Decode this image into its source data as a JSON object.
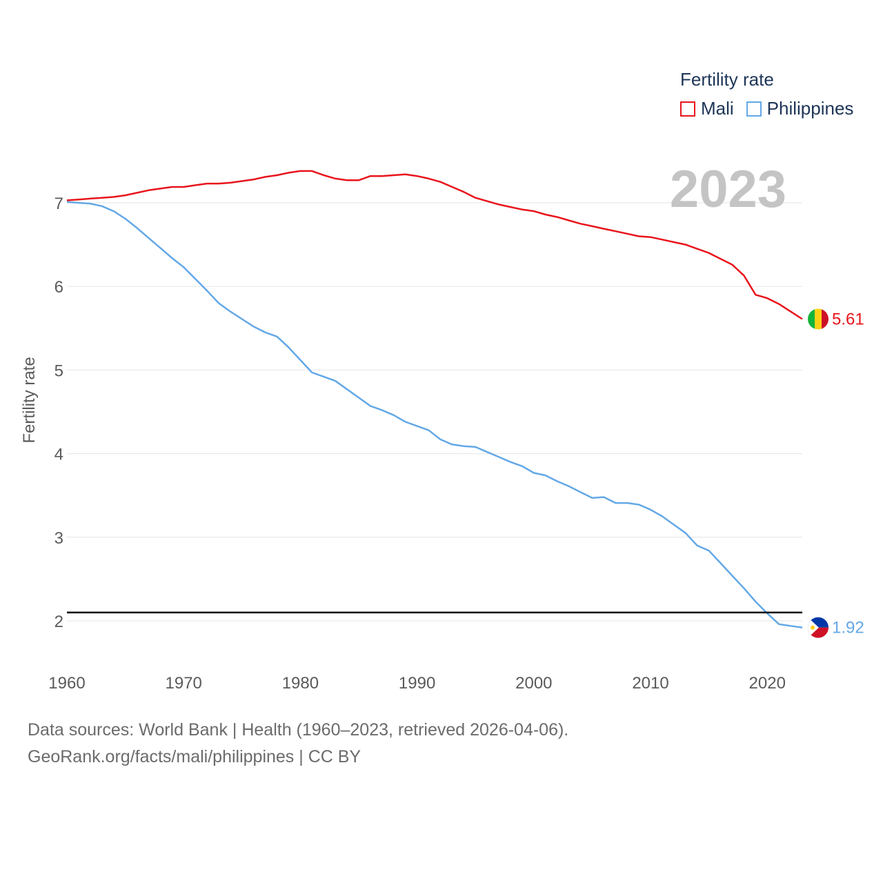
{
  "colors": {
    "mali": "#e8141c",
    "philippines": "#63a8e6",
    "grid": "#e6e6e6",
    "threshold": "#000000"
  },
  "legend": {
    "title": "Fertility rate",
    "items": [
      {
        "label": "Mali",
        "color": "#e8141c"
      },
      {
        "label": "Philippines",
        "color": "#63a8e6"
      }
    ]
  },
  "year_label": "2023",
  "footer": {
    "line1": "Data sources: World Bank | Health (1960–2023, retrieved 2026-04-06).",
    "line2": "GeoRank.org/facts/mali/philippines | CC BY"
  },
  "chart_data": {
    "type": "line",
    "title": "",
    "xlabel": "",
    "ylabel": "Fertility rate",
    "xlim": [
      1960,
      2023
    ],
    "ylim": [
      1.5,
      7.8
    ],
    "x_ticks": [
      "1960",
      "1970",
      "1980",
      "1990",
      "2000",
      "2010",
      "2020"
    ],
    "y_ticks": [
      "2",
      "3",
      "4",
      "5",
      "6",
      "7"
    ],
    "reference_line": {
      "y": 2.1,
      "color": "#000000"
    },
    "x": [
      1960,
      1961,
      1962,
      1963,
      1964,
      1965,
      1966,
      1967,
      1968,
      1969,
      1970,
      1971,
      1972,
      1973,
      1974,
      1975,
      1976,
      1977,
      1978,
      1979,
      1980,
      1981,
      1982,
      1983,
      1984,
      1985,
      1986,
      1987,
      1988,
      1989,
      1990,
      1991,
      1992,
      1993,
      1994,
      1995,
      1996,
      1997,
      1998,
      1999,
      2000,
      2001,
      2002,
      2003,
      2004,
      2005,
      2006,
      2007,
      2008,
      2009,
      2010,
      2011,
      2012,
      2013,
      2014,
      2015,
      2016,
      2017,
      2018,
      2019,
      2020,
      2021,
      2022,
      2023
    ],
    "series": [
      {
        "name": "Mali",
        "color": "#e8141c",
        "end_label": "5.61",
        "values": [
          7.03,
          7.04,
          7.05,
          7.06,
          7.07,
          7.09,
          7.12,
          7.15,
          7.17,
          7.19,
          7.19,
          7.21,
          7.23,
          7.23,
          7.24,
          7.26,
          7.28,
          7.31,
          7.33,
          7.36,
          7.38,
          7.38,
          7.33,
          7.29,
          7.27,
          7.27,
          7.32,
          7.32,
          7.33,
          7.34,
          7.32,
          7.29,
          7.25,
          7.19,
          7.13,
          7.06,
          7.02,
          6.98,
          6.95,
          6.92,
          6.9,
          6.86,
          6.83,
          6.79,
          6.75,
          6.72,
          6.69,
          6.66,
          6.63,
          6.6,
          6.59,
          6.56,
          6.53,
          6.5,
          6.45,
          6.4,
          6.33,
          6.26,
          6.13,
          5.9,
          5.86,
          5.79,
          5.7,
          5.61
        ]
      },
      {
        "name": "Philippines",
        "color": "#63a8e6",
        "end_label": "1.92",
        "values": [
          7.01,
          7.0,
          6.99,
          6.96,
          6.9,
          6.81,
          6.7,
          6.58,
          6.46,
          6.34,
          6.23,
          6.09,
          5.95,
          5.8,
          5.7,
          5.61,
          5.52,
          5.45,
          5.4,
          5.27,
          5.12,
          4.97,
          4.92,
          4.87,
          4.77,
          4.67,
          4.57,
          4.52,
          4.46,
          4.38,
          4.33,
          4.28,
          4.17,
          4.11,
          4.09,
          4.08,
          4.02,
          3.96,
          3.9,
          3.85,
          3.77,
          3.74,
          3.67,
          3.61,
          3.54,
          3.47,
          3.48,
          3.41,
          3.41,
          3.39,
          3.33,
          3.25,
          3.15,
          3.05,
          2.9,
          2.84,
          2.69,
          2.54,
          2.39,
          2.23,
          2.09,
          1.96,
          1.94,
          1.92
        ]
      }
    ]
  }
}
